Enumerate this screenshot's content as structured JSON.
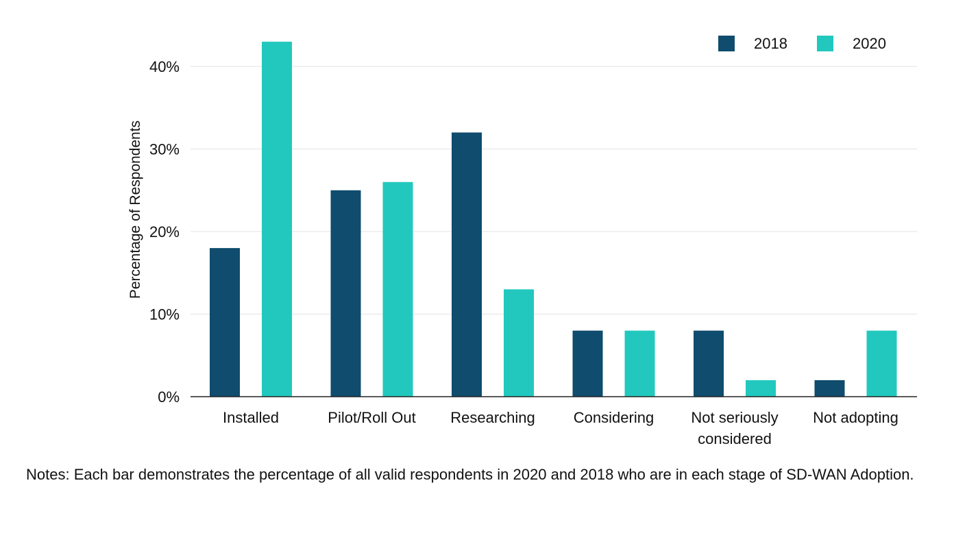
{
  "chart_data": {
    "type": "bar",
    "title": "",
    "xlabel": "",
    "ylabel": "Percentage of Respondents",
    "categories": [
      [
        "Installed"
      ],
      [
        "Pilot/Roll Out"
      ],
      [
        "Researching"
      ],
      [
        "Considering"
      ],
      [
        "Not seriously",
        "considered"
      ],
      [
        "Not adopting"
      ]
    ],
    "series": [
      {
        "name": "2018",
        "color": "#0f4c6e",
        "values": [
          18,
          25,
          32,
          8,
          8,
          2
        ]
      },
      {
        "name": "2020",
        "color": "#22c8bd",
        "values": [
          43,
          26,
          13,
          8,
          2,
          8
        ]
      }
    ],
    "ylim": [
      0,
      45
    ],
    "yticks": [
      0,
      10,
      20,
      30,
      40
    ],
    "ytick_labels": [
      "0%",
      "10%",
      "20%",
      "30%",
      "40%"
    ],
    "grid": true,
    "legend_position": "top-right"
  },
  "notes": "Notes: Each bar demonstrates the percentage of all valid respondents in 2020 and 2018 who are in each stage of SD-WAN Adoption."
}
